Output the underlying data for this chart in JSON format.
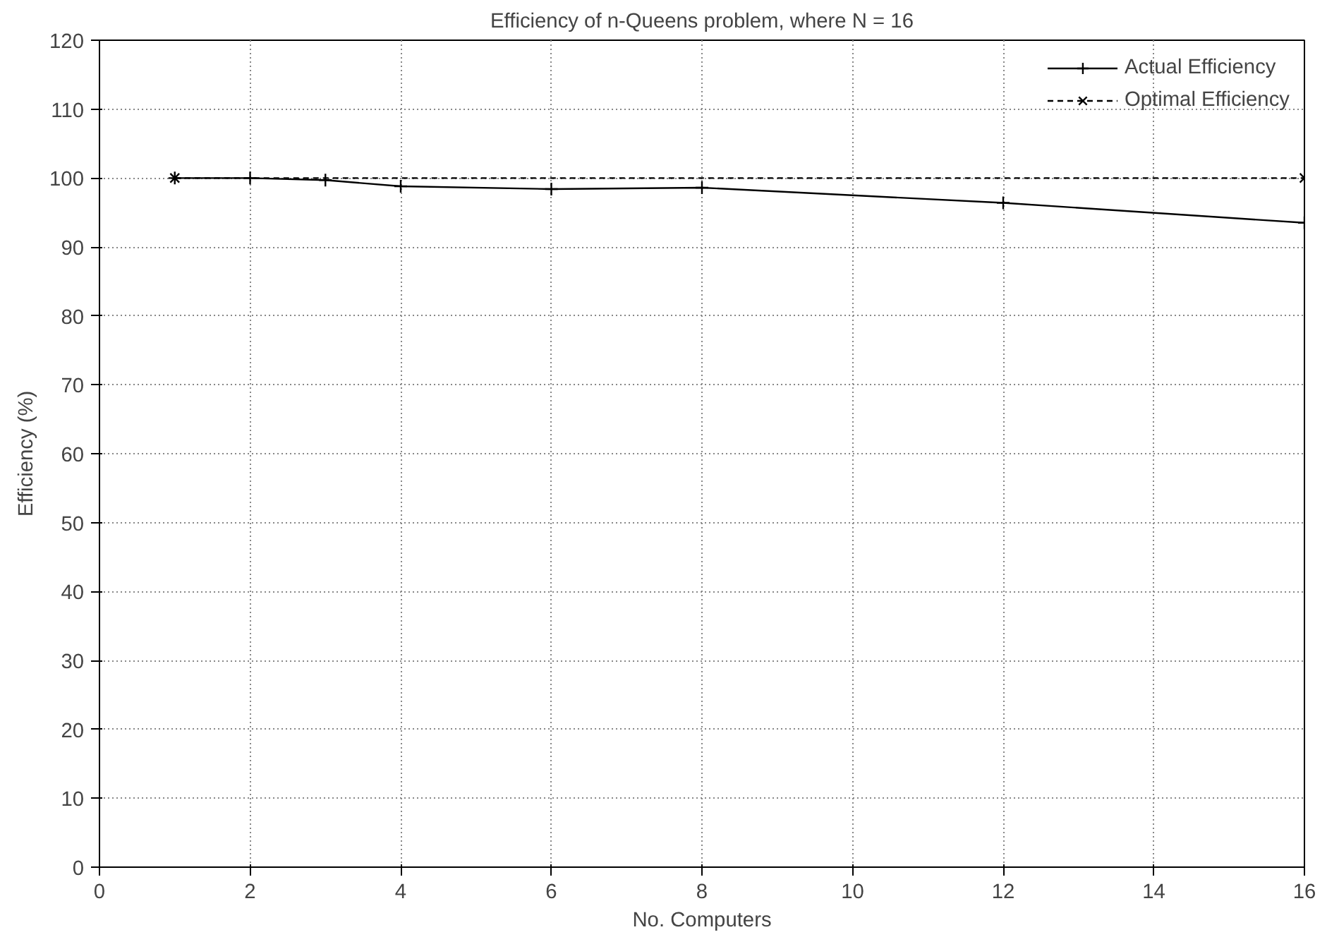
{
  "chart_data": {
    "type": "line",
    "title": "Efficiency of n-Queens problem, where N = 16",
    "xlabel": "No. Computers",
    "ylabel": "Efficiency (%)",
    "xlim": [
      0,
      16
    ],
    "xticks": [
      0,
      2,
      4,
      6,
      8,
      10,
      12,
      14,
      16
    ],
    "ylim": [
      0,
      120
    ],
    "yticks": [
      0,
      10,
      20,
      30,
      40,
      50,
      60,
      70,
      80,
      90,
      100,
      110,
      120
    ],
    "grid": true,
    "legend": "top right",
    "series": [
      {
        "name": "Actual Efficiency",
        "color": "#000000",
        "x": [
          1,
          2,
          3,
          4,
          6,
          8,
          12,
          16
        ],
        "values": [
          100,
          100,
          99.7,
          98.8,
          98.4,
          98.6,
          96.4,
          93.5
        ],
        "marker": "cross",
        "line_style": "solid"
      },
      {
        "name": "Optimal Efficiency",
        "color": "#000000",
        "x": [
          1,
          16
        ],
        "values": [
          100,
          100
        ],
        "marker": "x",
        "line_style": "dashed"
      }
    ]
  }
}
